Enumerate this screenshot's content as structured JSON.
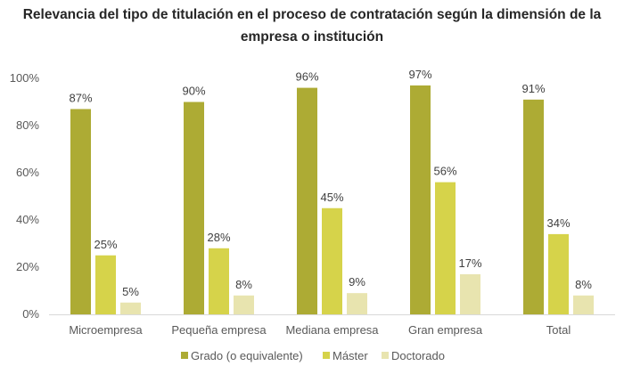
{
  "chart_data": {
    "type": "bar",
    "title_lines": [
      "Relevancia del tipo de titulación en el proceso de contratación según la dimensión de la",
      "empresa o institución"
    ],
    "categories": [
      "Microempresa",
      "Pequeña empresa",
      "Mediana empresa",
      "Gran empresa",
      "Total"
    ],
    "series": [
      {
        "name": "Grado (o equivalente)",
        "color": "#ADAB34",
        "values": [
          87,
          90,
          96,
          97,
          91
        ],
        "labels": [
          "87%",
          "90%",
          "96%",
          "97%",
          "91%"
        ]
      },
      {
        "name": "Máster",
        "color": "#D6D34A",
        "values": [
          25,
          28,
          45,
          56,
          34
        ],
        "labels": [
          "25%",
          "28%",
          "45%",
          "56%",
          "34%"
        ]
      },
      {
        "name": "Doctorado",
        "color": "#E8E4AF",
        "values": [
          5,
          8,
          9,
          17,
          8
        ],
        "labels": [
          "5%",
          "8%",
          "9%",
          "17%",
          "8%"
        ]
      }
    ],
    "ylim": [
      0,
      100
    ],
    "yticks": [
      "0%",
      "20%",
      "40%",
      "60%",
      "80%",
      "100%"
    ],
    "grid": false,
    "legend_position": "bottom"
  }
}
